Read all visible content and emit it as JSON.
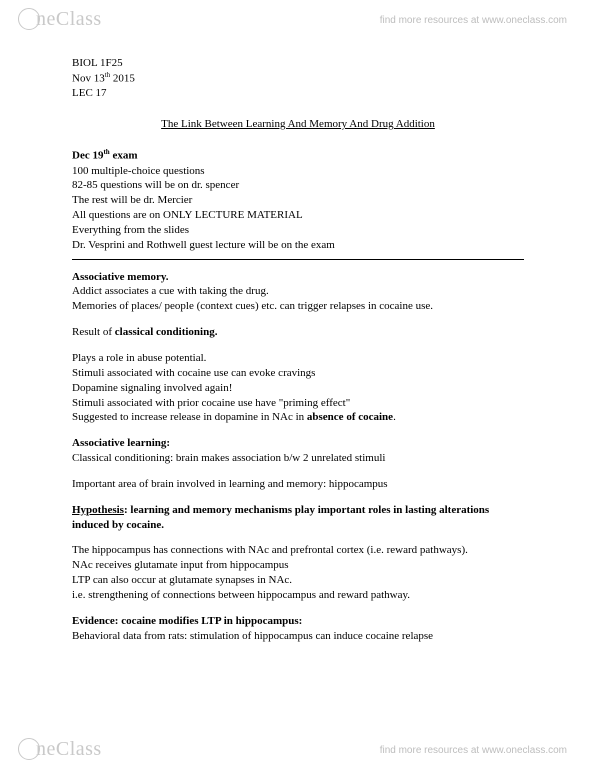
{
  "brand": {
    "name": "neClass",
    "tagline": "find more resources at www.oneclass.com"
  },
  "meta": {
    "course": "BIOL 1F25",
    "date_prefix": "Nov 13",
    "date_sup": "th",
    "date_suffix": " 2015",
    "lec": "LEC 17"
  },
  "title": "The Link Between Learning And Memory And Drug Addition",
  "exam": {
    "heading_prefix": "Dec 19",
    "heading_sup": "th",
    "heading_suffix": " exam",
    "lines": [
      "100 multiple-choice questions",
      "82-85 questions will be on dr. spencer",
      "The rest will be dr. Mercier",
      "All questions are on ONLY LECTURE MATERIAL",
      "Everything from the slides",
      "Dr. Vesprini and Rothwell guest lecture will be on the exam"
    ]
  },
  "assoc_mem": {
    "heading": "Associative memory.",
    "l1": "Addict associates a cue with taking the drug.",
    "l2": "Memories of places/ people (context cues) etc. can trigger relapses in cocaine use."
  },
  "classical": {
    "prefix": "Result of ",
    "bold": "classical conditioning.",
    "l1": "Plays a role in abuse potential.",
    "l2": "Stimuli associated with cocaine use can evoke cravings",
    "l3": "Dopamine signaling involved again!",
    "l4": "Stimuli associated with prior cocaine use have \"priming effect\"",
    "l5_a": "Suggested to increase release in dopamine in NAc in ",
    "l5_b": "absence of cocaine",
    "l5_c": "."
  },
  "assoc_learn": {
    "heading": "Associative learning:",
    "l1": "Classical conditioning: brain makes association b/w 2 unrelated stimuli",
    "l2": "Important area of brain involved in learning and memory: hippocampus"
  },
  "hypothesis": {
    "heading_a": "Hypothesis",
    "heading_b": ": learning and memory mechanisms play important roles in lasting alterations induced by cocaine.",
    "l1": "The hippocampus has connections with NAc and prefrontal cortex (i.e. reward pathways).",
    "l2": "NAc receives glutamate input from hippocampus",
    "l3": "LTP can also occur at glutamate synapses in NAc.",
    "l4": "i.e. strengthening of connections between hippocampus and reward pathway."
  },
  "evidence": {
    "heading": "Evidence: cocaine modifies LTP in hippocampus:",
    "l1": "Behavioral data from rats: stimulation of hippocampus can induce cocaine relapse"
  }
}
